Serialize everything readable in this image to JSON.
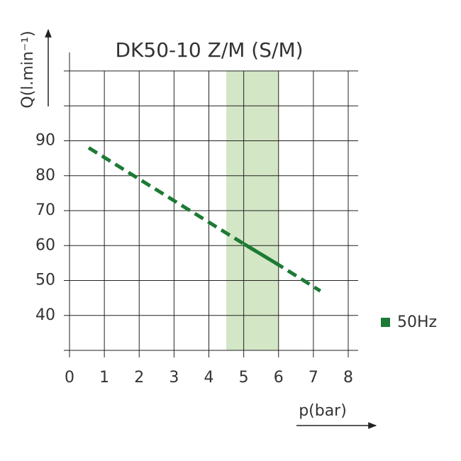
{
  "chart_data": {
    "type": "line",
    "title": "DK50-10 Z/M (S/M)",
    "x_label": "p(bar)",
    "y_label": "Q(l.min⁻¹)",
    "x": [
      0.55,
      5,
      6,
      7.2
    ],
    "series": [
      {
        "name": "50Hz",
        "color": "#1c7a34",
        "values": [
          88,
          60.5,
          54.5,
          47
        ]
      }
    ],
    "solid_range": [
      5,
      6
    ],
    "band": [
      4.5,
      6
    ],
    "band_color": "#d3e6c5",
    "xlim": [
      0,
      8
    ],
    "xticks": [
      0,
      1,
      2,
      3,
      4,
      5,
      6,
      7,
      8
    ],
    "ylim": [
      30,
      110
    ],
    "yticks": [
      40,
      50,
      60,
      70,
      80,
      90
    ],
    "ygrid": [
      30,
      40,
      50,
      60,
      70,
      80,
      90,
      100,
      110
    ],
    "grid": true
  }
}
